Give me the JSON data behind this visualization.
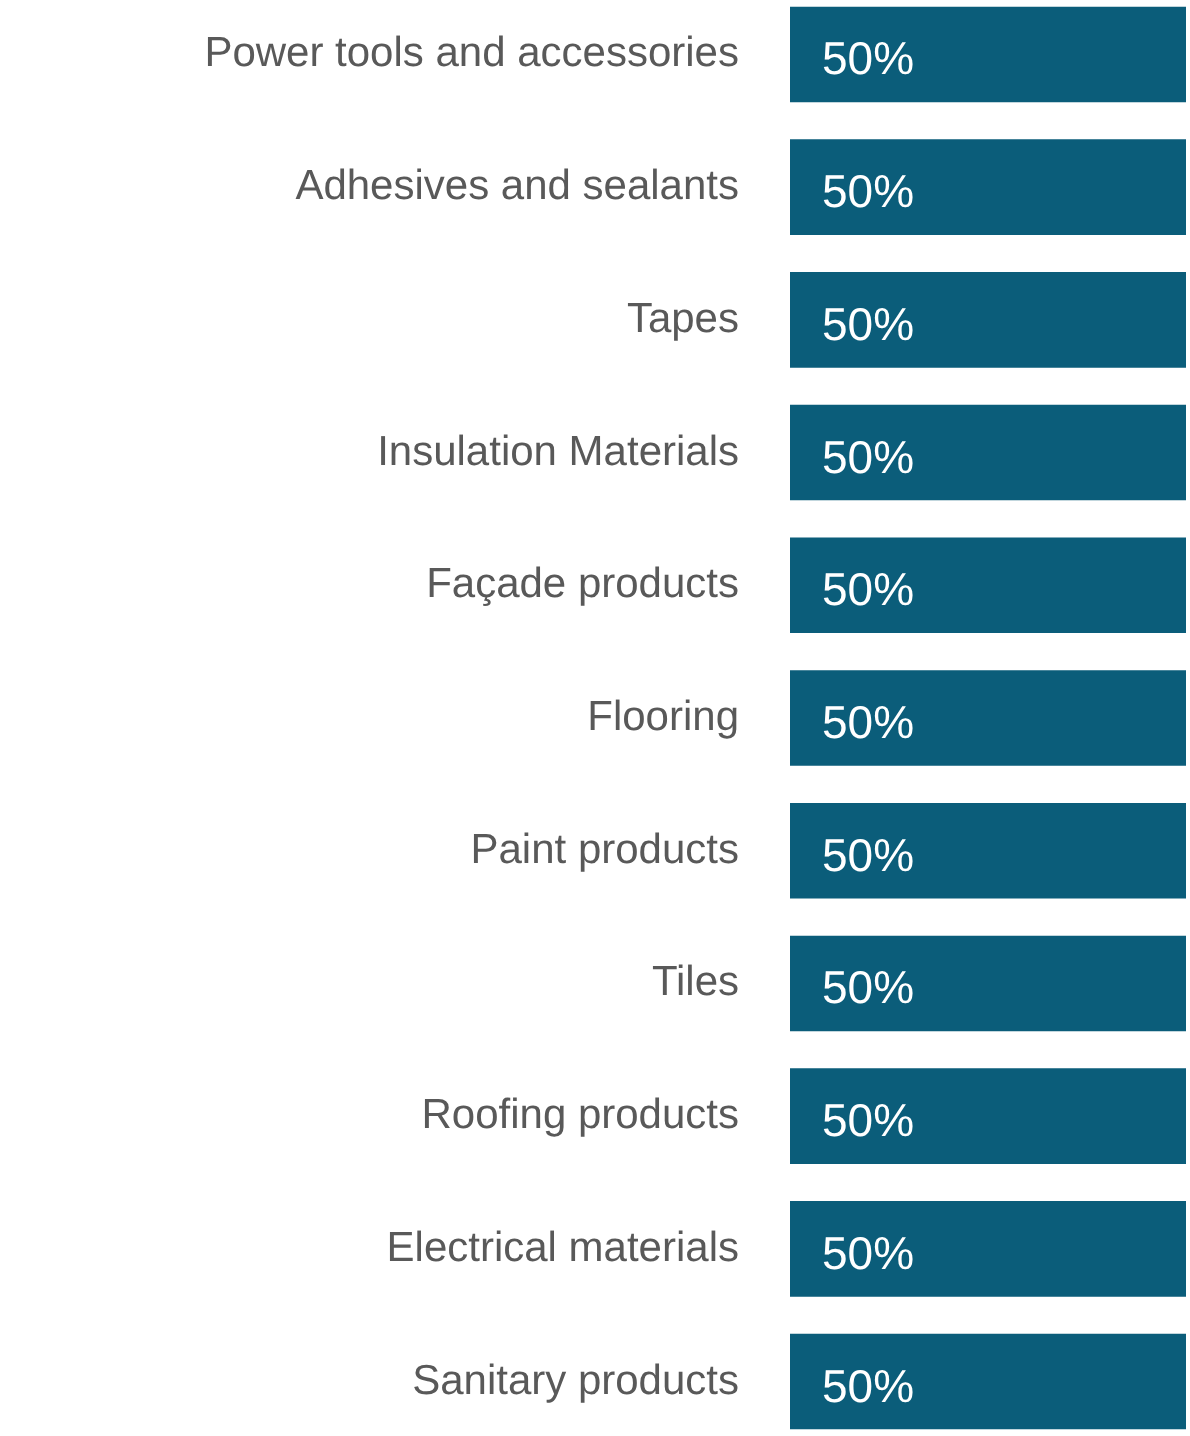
{
  "chart_data": {
    "type": "bar",
    "orientation": "horizontal",
    "categories": [
      "Power tools and accessories",
      "Adhesives and sealants",
      "Tapes",
      "Insulation Materials",
      "Façade products",
      "Flooring",
      "Paint products",
      "Tiles",
      "Roofing products",
      "Electrical materials",
      "Sanitary products"
    ],
    "values": [
      50,
      50,
      50,
      50,
      50,
      50,
      50,
      50,
      50,
      50,
      50
    ],
    "value_labels": [
      "50%",
      "50%",
      "50%",
      "50%",
      "50%",
      "50%",
      "50%",
      "50%",
      "50%",
      "50%",
      "50%"
    ],
    "color": "#0b5d7a",
    "tick_labels": "y"
  }
}
